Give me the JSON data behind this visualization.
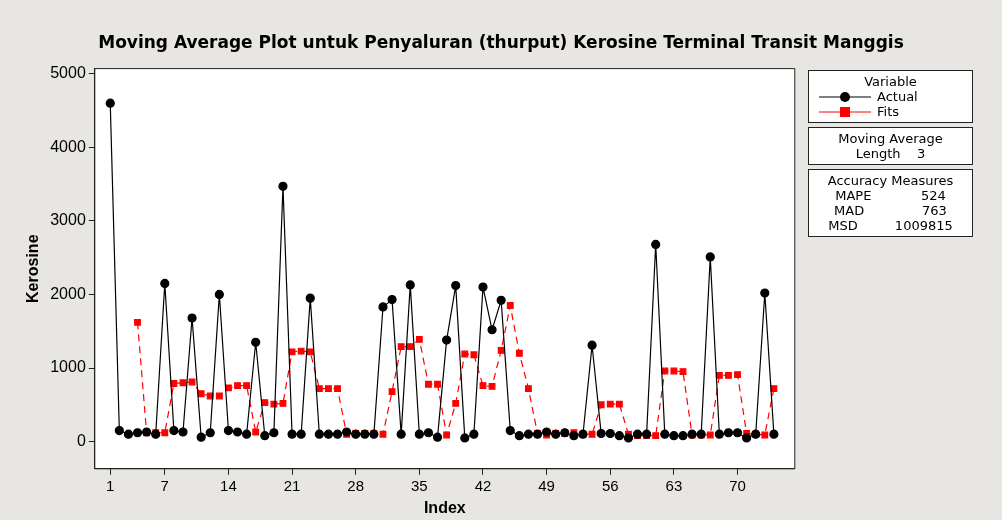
{
  "chart_data": {
    "type": "line",
    "title": "Moving Average Plot untuk Penyaluran (thurput) Kerosine Terminal Transit Manggis",
    "xlabel": "Index",
    "ylabel": "Kerosine",
    "legend_title": "Variable",
    "legend": "right",
    "x": [
      1,
      2,
      3,
      4,
      5,
      6,
      7,
      8,
      9,
      10,
      11,
      12,
      13,
      14,
      15,
      16,
      17,
      18,
      19,
      20,
      21,
      22,
      23,
      24,
      25,
      26,
      27,
      28,
      29,
      30,
      31,
      32,
      33,
      34,
      35,
      36,
      37,
      38,
      39,
      40,
      41,
      42,
      43,
      44,
      45,
      46,
      47,
      48,
      49,
      50,
      51,
      52,
      53,
      54,
      55,
      56,
      57,
      58,
      59,
      60,
      61,
      62,
      63,
      64,
      65,
      66,
      67,
      68,
      69,
      70,
      71,
      72,
      73,
      74
    ],
    "series": [
      {
        "name": "Actual",
        "color": "#000000",
        "marker": "circle",
        "line_style": "solid",
        "values": [
          4600,
          150,
          100,
          120,
          130,
          100,
          2150,
          150,
          130,
          1680,
          60,
          120,
          2000,
          150,
          130,
          100,
          1350,
          80,
          120,
          3470,
          100,
          100,
          1950,
          100,
          100,
          100,
          130,
          100,
          100,
          100,
          1830,
          1930,
          100,
          2130,
          100,
          120,
          60,
          1380,
          2120,
          50,
          100,
          2100,
          1520,
          1920,
          150,
          80,
          100,
          100,
          130,
          100,
          120,
          80,
          100,
          1310,
          110,
          110,
          80,
          50,
          100,
          100,
          2680,
          100,
          80,
          80,
          100,
          100,
          2510,
          100,
          120,
          120,
          50,
          100,
          2020,
          100
        ]
      },
      {
        "name": "Fits",
        "color": "#ff0000",
        "marker": "square",
        "line_style": "dashed",
        "values": [
          null,
          null,
          null,
          1620,
          120,
          120,
          120,
          790,
          800,
          810,
          650,
          620,
          620,
          730,
          760,
          760,
          130,
          530,
          510,
          520,
          1220,
          1230,
          1220,
          720,
          720,
          720,
          100,
          110,
          110,
          110,
          100,
          680,
          1290,
          1290,
          1390,
          780,
          780,
          90,
          520,
          1190,
          1180,
          760,
          750,
          1240,
          1850,
          1200,
          720,
          110,
          90,
          110,
          110,
          120,
          100,
          100,
          500,
          510,
          510,
          100,
          80,
          80,
          80,
          960,
          960,
          950,
          90,
          90,
          90,
          900,
          900,
          910,
          110,
          100,
          90,
          720
        ]
      }
    ],
    "xlim": [
      -0.7,
      76.3
    ],
    "xticks": [
      1,
      7,
      14,
      21,
      28,
      35,
      42,
      49,
      56,
      63,
      70
    ],
    "ylim": [
      -370,
      5070
    ],
    "yticks": [
      0,
      1000,
      2000,
      3000,
      4000,
      5000
    ],
    "grid": false,
    "annotations": [
      "Moving Average",
      "Length    3",
      "Accuracy Measures",
      "MAPE            524",
      "MAD              763",
      "MSD         1009815"
    ]
  }
}
